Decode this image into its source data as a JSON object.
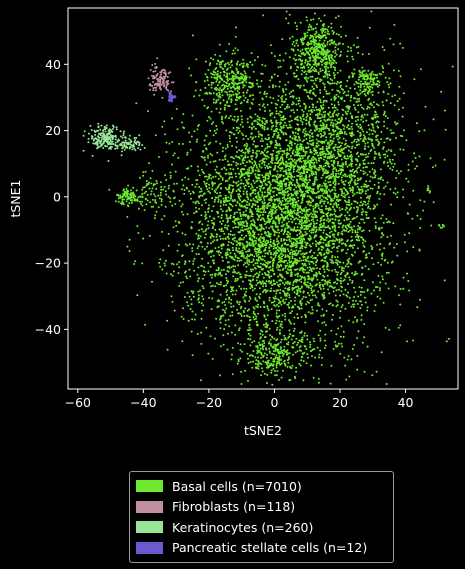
{
  "chart_data": {
    "type": "scatter",
    "title": "",
    "xlabel": "tSNE2",
    "ylabel": "tSNE1",
    "xlim": [
      -63,
      56
    ],
    "ylim": [
      -58,
      57
    ],
    "xticks": [
      -60,
      -40,
      -20,
      0,
      20,
      40
    ],
    "yticks": [
      -40,
      -20,
      0,
      20,
      40
    ],
    "xtick_labels": [
      "−60",
      "−40",
      "−20",
      "0",
      "20",
      "40"
    ],
    "ytick_labels": [
      "−40",
      "−20",
      "0",
      "20",
      "40"
    ],
    "grid": false,
    "legend_position": "below",
    "background": "#000000",
    "series": [
      {
        "name": "Basal cells (n=7010)",
        "color": "#6ee82e",
        "count": 7010,
        "clusters": [
          {
            "cx": 2,
            "cy": -8,
            "sx": 15,
            "sy": 19,
            "weight": 0.62
          },
          {
            "cx": 13,
            "cy": 44,
            "sx": 3.5,
            "sy": 4.5,
            "weight": 0.06
          },
          {
            "cx": -14,
            "cy": 35,
            "sx": 4,
            "sy": 4,
            "weight": 0.04
          },
          {
            "cx": 29,
            "cy": 35,
            "sx": 2,
            "sy": 2,
            "weight": 0.015
          },
          {
            "cx": -45,
            "cy": 0,
            "sx": 2,
            "sy": 1.5,
            "weight": 0.012
          },
          {
            "cx": -38,
            "cy": 2,
            "sx": 3,
            "sy": 3,
            "weight": 0.01
          },
          {
            "cx": 0,
            "cy": -48,
            "sx": 5,
            "sy": 3,
            "weight": 0.03
          },
          {
            "cx": 15,
            "cy": 15,
            "sx": 12,
            "sy": 14,
            "weight": 0.2
          },
          {
            "cx": 51,
            "cy": -9,
            "sx": 0.4,
            "sy": 0.5,
            "weight": 0.001
          },
          {
            "cx": 47,
            "cy": 2,
            "sx": 0.4,
            "sy": 0.7,
            "weight": 0.001
          }
        ]
      },
      {
        "name": "Fibroblasts (n=118)",
        "color": "#c08fa2",
        "count": 118,
        "clusters": [
          {
            "cx": -35,
            "cy": 35,
            "sx": 1.5,
            "sy": 2.2,
            "weight": 1
          }
        ]
      },
      {
        "name": "Keratinocytes (n=260)",
        "color": "#98e598",
        "count": 260,
        "clusters": [
          {
            "cx": -52,
            "cy": 18,
            "sx": 2.2,
            "sy": 1.6,
            "weight": 0.7
          },
          {
            "cx": -45,
            "cy": 16,
            "sx": 2.5,
            "sy": 1.2,
            "weight": 0.3
          }
        ]
      },
      {
        "name": "Pancreatic stellate cells (n=12)",
        "color": "#6a5acd",
        "count": 12,
        "clusters": [
          {
            "cx": -31.5,
            "cy": 30,
            "sx": 0.4,
            "sy": 0.4,
            "weight": 1
          }
        ]
      }
    ]
  }
}
